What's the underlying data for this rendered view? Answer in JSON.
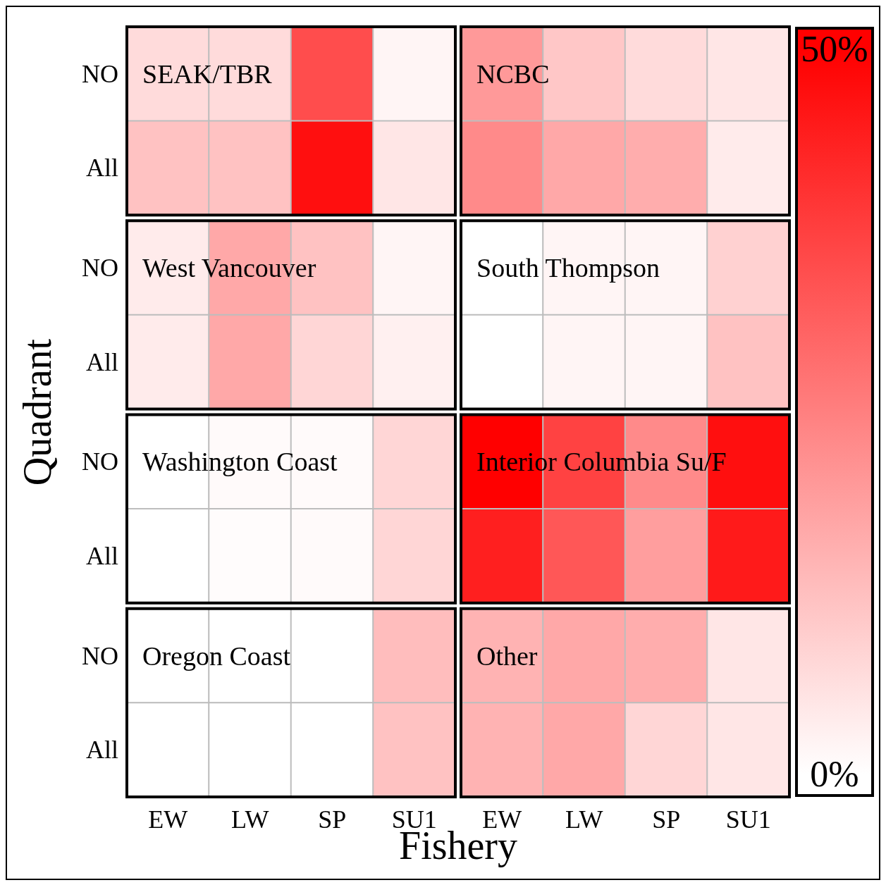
{
  "chart_data": {
    "type": "heatmap",
    "xlabel": "Fishery",
    "ylabel": "Quadrant",
    "categories": [
      "EW",
      "LW",
      "SP",
      "SU1",
      "EW",
      "LW",
      "SP",
      "SU1"
    ],
    "y_categories": [
      "NO",
      "All",
      "NO",
      "All",
      "NO",
      "All",
      "NO",
      "All"
    ],
    "cells": [
      [
        7,
        7,
        35,
        2,
        20,
        11,
        7,
        5
      ],
      [
        12,
        12,
        47,
        5,
        23,
        17,
        16,
        4
      ],
      [
        4,
        17,
        12,
        2,
        0,
        2,
        2,
        9
      ],
      [
        4,
        17,
        8,
        3,
        0,
        2,
        2,
        12
      ],
      [
        0,
        1,
        1,
        8,
        50,
        37,
        23,
        47
      ],
      [
        0,
        0.5,
        1,
        8,
        44,
        33,
        19,
        45
      ],
      [
        0,
        0,
        0,
        13,
        15,
        17,
        16,
        5
      ],
      [
        0,
        0,
        0,
        12,
        15,
        17,
        8,
        5
      ]
    ],
    "annotations": [
      "SEAK/TBR",
      "NCBC",
      "West Vancouver",
      "South Thompson",
      "Washington Coast",
      "Interior Columbia Su/F",
      "Oregon Coast",
      "Other"
    ],
    "clim": [
      0,
      50
    ],
    "cticks": [
      {
        "value": 0,
        "label": "0%"
      },
      {
        "value": 50,
        "label": "50%"
      }
    ]
  }
}
